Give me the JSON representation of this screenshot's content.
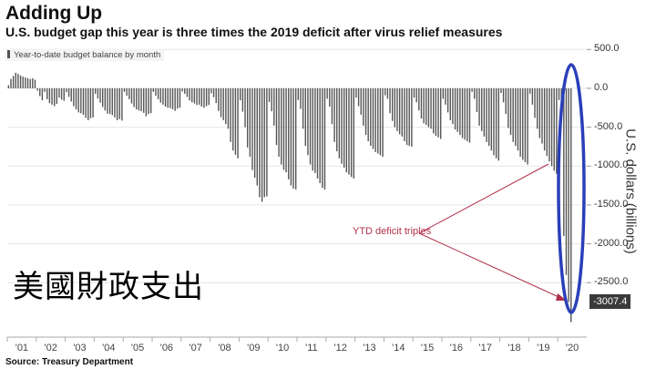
{
  "title": "Adding Up",
  "subtitle": "U.S. budget gap this year is three times the 2019 deficit after virus relief measures",
  "source": "Source: Treasury Department",
  "overlay_text": "美國財政支出",
  "annotation": "YTD deficit triples",
  "last_value_label": "-3007.4",
  "colors": {
    "bar": "#555555",
    "annotation": "#b0304a",
    "ellipse": "#2b3fb8",
    "grid": "#e6e6e6"
  },
  "chart_data": {
    "type": "bar",
    "title": "Adding Up",
    "subtitle": "U.S. budget gap this year is three times the 2019 deficit after virus relief measures",
    "xlabel": "",
    "ylabel": "U.S. dollars (billions)",
    "ylim": [
      -3200,
      550
    ],
    "yticks": [
      "500.0",
      "0.0",
      "-500.0",
      "-1000.0",
      "-1500.0",
      "-2000.0",
      "-2500.0"
    ],
    "grid": true,
    "legend_position": "top-left",
    "series": [
      {
        "name": "Year-to-date budget balance by month",
        "years": [
          "'01",
          "'02",
          "'03",
          "'04",
          "'05",
          "'06",
          "'07",
          "'08",
          "'09",
          "'10",
          "'11",
          "'12",
          "'13",
          "'14",
          "'15",
          "'16",
          "'17",
          "'18",
          "'19",
          "'20"
        ],
        "monthly_values": [
          [
            40,
            120,
            160,
            200,
            185,
            165,
            150,
            140,
            130,
            120,
            130,
            110
          ],
          [
            -30,
            -100,
            -155,
            -45,
            -140,
            -190,
            -210,
            -230,
            -200,
            -120,
            -145,
            -160
          ],
          [
            -50,
            -110,
            -170,
            -230,
            -270,
            -310,
            -320,
            -340,
            -380,
            -410,
            -385,
            -375
          ],
          [
            -70,
            -130,
            -185,
            -240,
            -285,
            -325,
            -330,
            -345,
            -375,
            -410,
            -395,
            -415
          ],
          [
            -45,
            -95,
            -140,
            -195,
            -240,
            -270,
            -285,
            -295,
            -315,
            -360,
            -330,
            -320
          ],
          [
            -45,
            -95,
            -140,
            -185,
            -210,
            -235,
            -250,
            -255,
            -270,
            -290,
            -260,
            -250
          ],
          [
            -40,
            -70,
            -110,
            -155,
            -180,
            -195,
            -215,
            -210,
            -235,
            -250,
            -230,
            -215
          ],
          [
            -65,
            -115,
            -190,
            -290,
            -370,
            -410,
            -460,
            -520,
            -690,
            -800,
            -855,
            -900
          ],
          [
            -155,
            -300,
            -500,
            -760,
            -880,
            -1050,
            -1150,
            -1250,
            -1400,
            -1460,
            -1400,
            -1390
          ],
          [
            -175,
            -295,
            -480,
            -730,
            -880,
            -980,
            -1050,
            -1080,
            -1170,
            -1250,
            -1290,
            -1300
          ],
          [
            -150,
            -265,
            -520,
            -740,
            -860,
            -980,
            -1060,
            -1090,
            -1160,
            -1220,
            -1280,
            -1300
          ],
          [
            -135,
            -235,
            -460,
            -690,
            -810,
            -900,
            -970,
            -1020,
            -1080,
            -1110,
            -1140,
            -1160
          ],
          [
            -120,
            -230,
            -340,
            -480,
            -600,
            -680,
            -740,
            -780,
            -820,
            -840,
            -860,
            -880
          ],
          [
            -90,
            -135,
            -320,
            -420,
            -500,
            -550,
            -590,
            -620,
            -680,
            -730,
            -740,
            -750
          ],
          [
            -120,
            -180,
            -285,
            -390,
            -450,
            -470,
            -500,
            -520,
            -580,
            -610,
            -630,
            -650
          ],
          [
            -135,
            -210,
            -310,
            -410,
            -460,
            -530,
            -560,
            -600,
            -640,
            -660,
            -680,
            -700
          ],
          [
            -45,
            -135,
            -305,
            -480,
            -550,
            -620,
            -690,
            -740,
            -800,
            -860,
            -900,
            -930
          ],
          [
            -60,
            -180,
            -330,
            -510,
            -600,
            -690,
            -740,
            -800,
            -880,
            -920,
            -950,
            -980
          ],
          [
            -70,
            -210,
            -380,
            -520,
            -640,
            -710,
            -800,
            -870,
            -940,
            -1000,
            -1060,
            -1100
          ],
          [
            -150,
            -390,
            -1900,
            -2400,
            -2750,
            -3007.4
          ]
        ]
      }
    ]
  }
}
